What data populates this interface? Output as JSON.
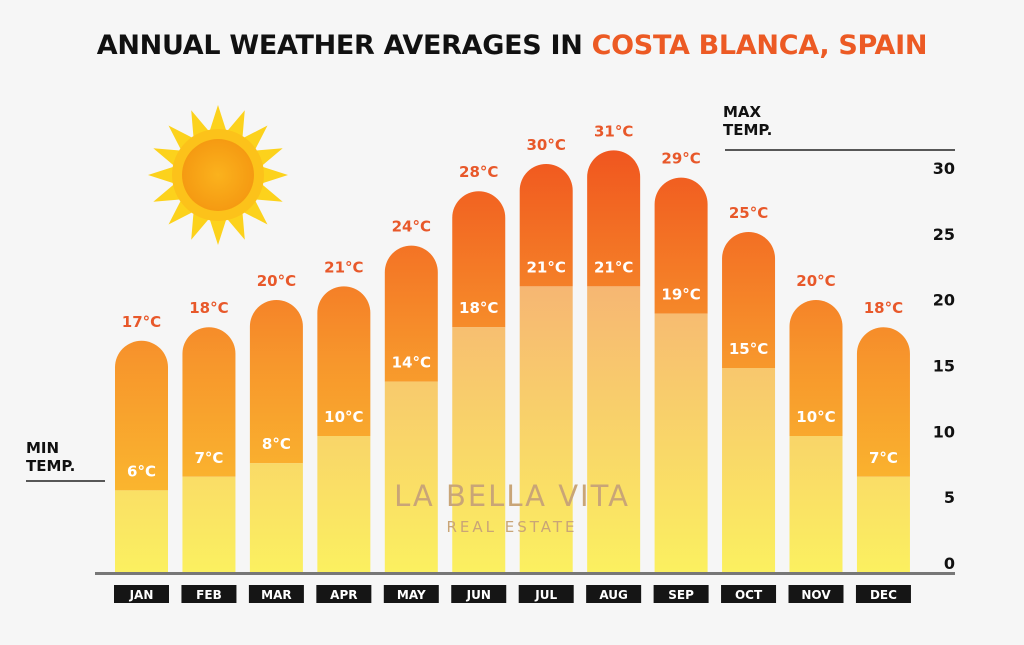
{
  "chart_data": {
    "type": "bar",
    "title_prefix": "ANNUAL WEATHER AVERAGES IN ",
    "title_highlight": "COSTA BLANCA, SPAIN",
    "categories": [
      "JAN",
      "FEB",
      "MAR",
      "APR",
      "MAY",
      "JUN",
      "JUL",
      "AUG",
      "SEP",
      "OCT",
      "NOV",
      "DEC"
    ],
    "series": [
      {
        "name": "MAX TEMP.",
        "values": [
          17,
          18,
          20,
          21,
          24,
          28,
          30,
          31,
          29,
          25,
          20,
          18
        ]
      },
      {
        "name": "MIN TEMP.",
        "values": [
          6,
          7,
          8,
          10,
          14,
          18,
          21,
          21,
          19,
          15,
          10,
          7
        ]
      }
    ],
    "unit": "°C",
    "yticks": [
      0,
      5,
      10,
      15,
      20,
      25,
      30
    ],
    "ylim": [
      0,
      31
    ],
    "max_label": [
      "MAX",
      "TEMP."
    ],
    "min_label": [
      "MIN",
      "TEMP."
    ],
    "watermark": {
      "line1": "LA BELLA VITA",
      "line2": "REAL ESTATE"
    },
    "colors": {
      "title_accent": "#ec5a24",
      "max_label": "#e8582a",
      "min_label": "#ffffff"
    }
  }
}
